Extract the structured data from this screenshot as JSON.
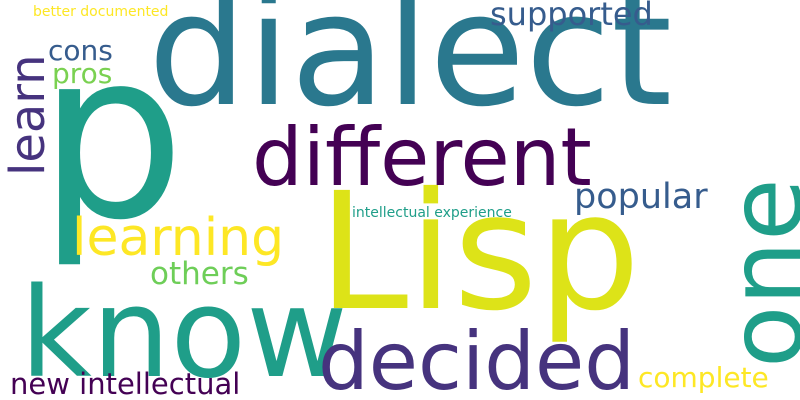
{
  "words": {
    "dialect": "dialect",
    "p": "p",
    "lisp": "Lisp",
    "know": "know",
    "different": "different",
    "one": "one",
    "decided": "decided",
    "learning": "learning",
    "learn": "learn",
    "supported": "supported",
    "popular": "popular",
    "cons": "cons",
    "pros": "pros",
    "others": "others",
    "new_intellectual": "new intellectual",
    "complete": "complete",
    "intellectual_experience": "intellectual experience",
    "better_documented": "better documented"
  },
  "colors": {
    "teal": "#2a788e",
    "green_teal": "#1f9e89",
    "dark_purple": "#440154",
    "indigo": "#46337e",
    "slate_blue": "#365c8d",
    "yellow": "#dde318",
    "light_yellow": "#fde725",
    "lime": "#7ad151",
    "pale_green": "#6ece58"
  }
}
